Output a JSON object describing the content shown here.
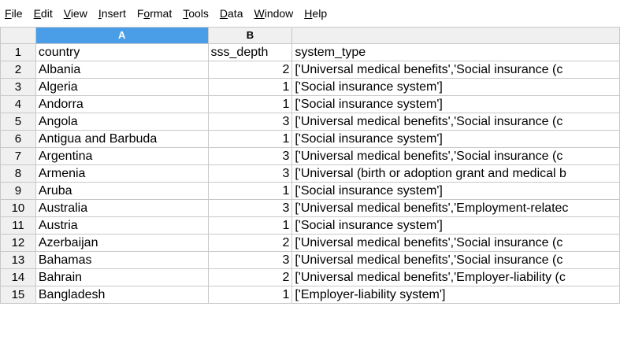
{
  "menu": [
    {
      "pre": "",
      "u": "F",
      "post": "ile"
    },
    {
      "pre": "",
      "u": "E",
      "post": "dit"
    },
    {
      "pre": "",
      "u": "V",
      "post": "iew"
    },
    {
      "pre": "",
      "u": "I",
      "post": "nsert"
    },
    {
      "pre": "F",
      "u": "o",
      "post": "rmat"
    },
    {
      "pre": "",
      "u": "T",
      "post": "ools"
    },
    {
      "pre": "",
      "u": "D",
      "post": "ata"
    },
    {
      "pre": "",
      "u": "W",
      "post": "indow"
    },
    {
      "pre": "",
      "u": "H",
      "post": "elp"
    }
  ],
  "columns": [
    "A",
    "B",
    ""
  ],
  "selected_column": "A",
  "rows": [
    {
      "n": "1",
      "a": "country",
      "b": "sss_depth",
      "c": "system_type",
      "b_num": false
    },
    {
      "n": "2",
      "a": "Albania",
      "b": "2",
      "c": "['Universal medical benefits','Social insurance (c",
      "b_num": true
    },
    {
      "n": "3",
      "a": "Algeria",
      "b": "1",
      "c": "['Social insurance system']",
      "b_num": true
    },
    {
      "n": "4",
      "a": "Andorra",
      "b": "1",
      "c": "['Social insurance system']",
      "b_num": true
    },
    {
      "n": "5",
      "a": "Angola",
      "b": "3",
      "c": "['Universal medical benefits','Social insurance (c",
      "b_num": true
    },
    {
      "n": "6",
      "a": "Antigua and Barbuda",
      "b": "1",
      "c": "['Social insurance system']",
      "b_num": true
    },
    {
      "n": "7",
      "a": "Argentina",
      "b": "3",
      "c": "['Universal medical benefits','Social insurance (c",
      "b_num": true
    },
    {
      "n": "8",
      "a": "Armenia",
      "b": "3",
      "c": "['Universal (birth or adoption grant and medical b",
      "b_num": true
    },
    {
      "n": "9",
      "a": "Aruba",
      "b": "1",
      "c": "['Social insurance system']",
      "b_num": true
    },
    {
      "n": "10",
      "a": "Australia",
      "b": "3",
      "c": "['Universal medical benefits','Employment-relatec",
      "b_num": true
    },
    {
      "n": "11",
      "a": "Austria",
      "b": "1",
      "c": "['Social insurance system']",
      "b_num": true
    },
    {
      "n": "12",
      "a": "Azerbaijan",
      "b": "2",
      "c": "['Universal medical benefits','Social insurance (c",
      "b_num": true
    },
    {
      "n": "13",
      "a": "Bahamas",
      "b": "3",
      "c": "['Universal medical benefits','Social insurance (c",
      "b_num": true
    },
    {
      "n": "14",
      "a": "Bahrain",
      "b": "2",
      "c": "['Universal medical benefits','Employer-liability (c",
      "b_num": true
    },
    {
      "n": "15",
      "a": "Bangladesh",
      "b": "1",
      "c": "['Employer-liability system']",
      "b_num": true
    }
  ]
}
